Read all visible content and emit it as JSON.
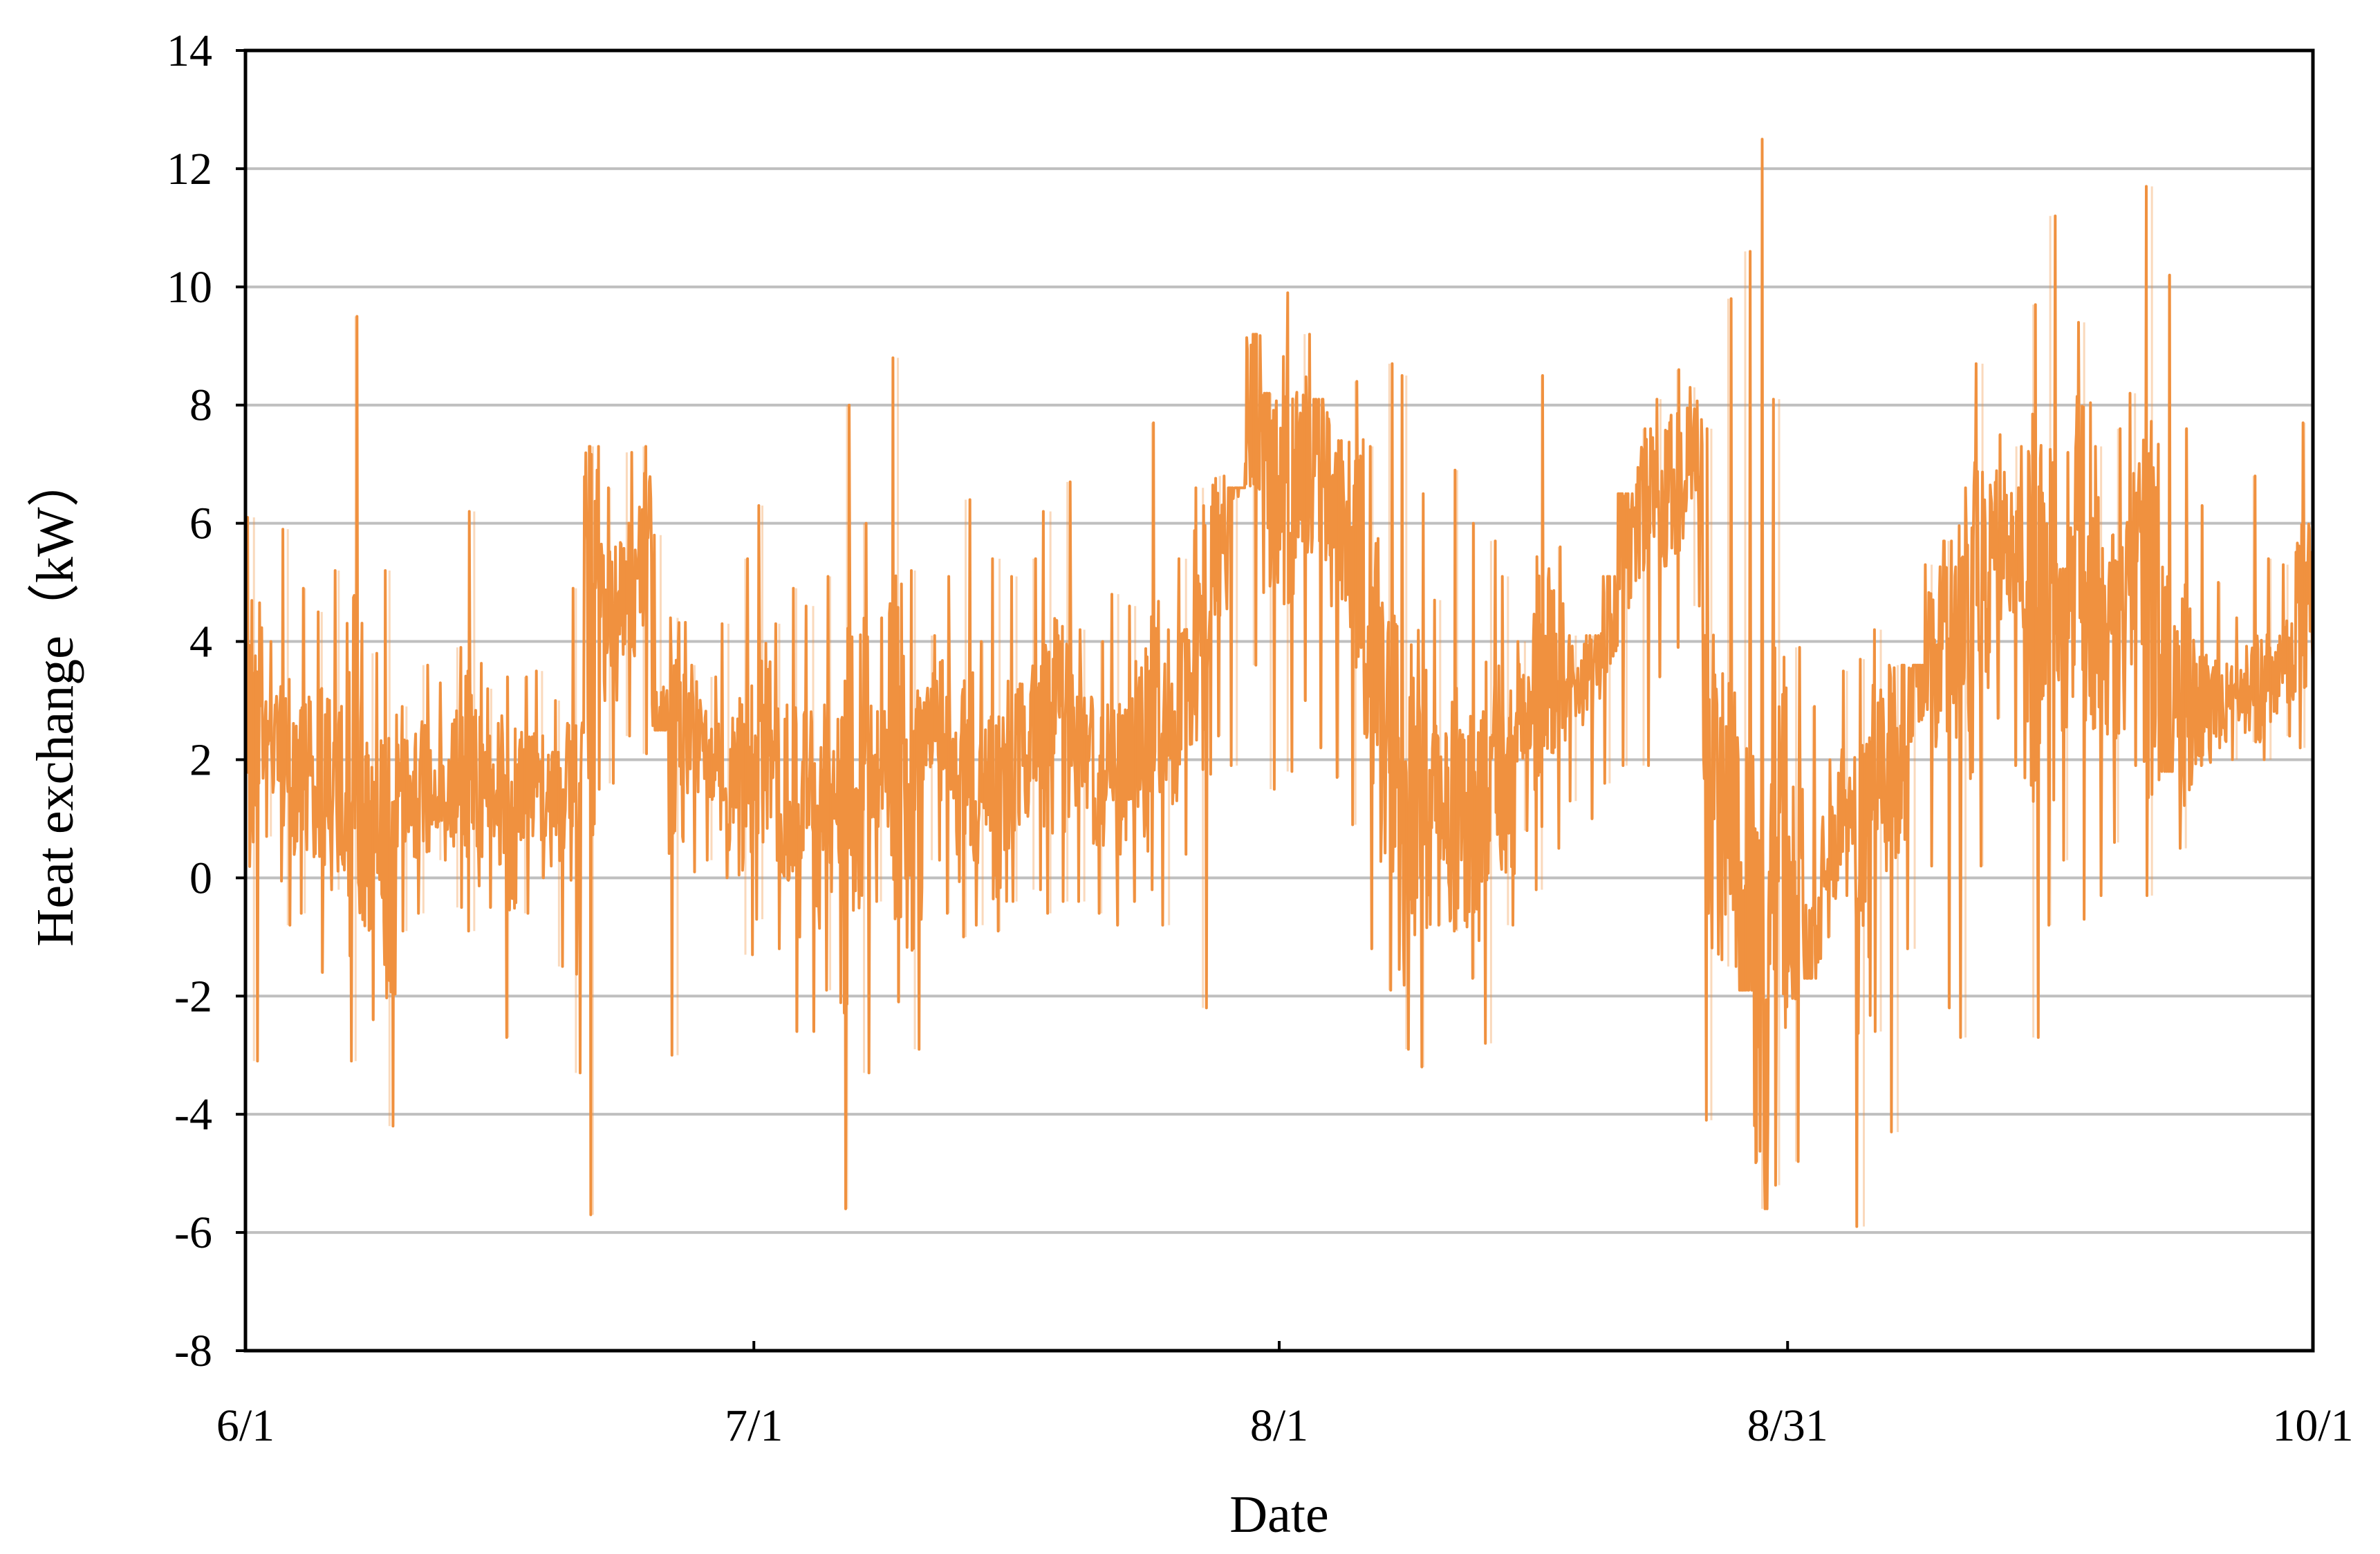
{
  "chart_data": {
    "type": "line",
    "title": "",
    "xlabel": "Date",
    "ylabel": "Heat exchange（kW）",
    "x_tick_labels": [
      "6/1",
      "7/1",
      "8/1",
      "8/31",
      "10/1"
    ],
    "x_tick_dates": [
      "2000-06-01",
      "2000-07-01",
      "2000-08-01",
      "2000-08-31",
      "2000-10-01"
    ],
    "xlim": [
      "2000-06-01",
      "2000-10-01"
    ],
    "ylim": [
      -8,
      14
    ],
    "y_ticks": [
      -8,
      -6,
      -4,
      -2,
      0,
      2,
      4,
      6,
      8,
      10,
      12,
      14
    ],
    "y_tick_labels": [
      "-8",
      "-6",
      "-4",
      "-2",
      "0",
      "2",
      "4",
      "6",
      "8",
      "10",
      "12",
      "14"
    ],
    "grid": "horizontal",
    "legend": "none",
    "line_color": "#F0913F",
    "series": [
      {
        "x": [
          "2000-06-01",
          "2000-06-02",
          "2000-06-03",
          "2000-06-04",
          "2000-06-05",
          "2000-06-06",
          "2000-06-07",
          "2000-06-08",
          "2000-06-09",
          "2000-06-10",
          "2000-06-11",
          "2000-06-12",
          "2000-06-13",
          "2000-06-14",
          "2000-06-15",
          "2000-06-16",
          "2000-06-17",
          "2000-06-18",
          "2000-06-19",
          "2000-06-20",
          "2000-06-21",
          "2000-06-22",
          "2000-06-23",
          "2000-06-24",
          "2000-06-25",
          "2000-06-26",
          "2000-06-27",
          "2000-06-28",
          "2000-06-29",
          "2000-06-30",
          "2000-07-01",
          "2000-07-02",
          "2000-07-03",
          "2000-07-04",
          "2000-07-05",
          "2000-07-06",
          "2000-07-07",
          "2000-07-08",
          "2000-07-09",
          "2000-07-10",
          "2000-07-11",
          "2000-07-12",
          "2000-07-13",
          "2000-07-14",
          "2000-07-15",
          "2000-07-16",
          "2000-07-17",
          "2000-07-18",
          "2000-07-19",
          "2000-07-20",
          "2000-07-21",
          "2000-07-22",
          "2000-07-23",
          "2000-07-24",
          "2000-07-25",
          "2000-07-26",
          "2000-07-27",
          "2000-07-28",
          "2000-07-29",
          "2000-07-30",
          "2000-07-31",
          "2000-08-01",
          "2000-08-02",
          "2000-08-03",
          "2000-08-04",
          "2000-08-05",
          "2000-08-06",
          "2000-08-07",
          "2000-08-08",
          "2000-08-09",
          "2000-08-10",
          "2000-08-11",
          "2000-08-12",
          "2000-08-13",
          "2000-08-14",
          "2000-08-15",
          "2000-08-16",
          "2000-08-17",
          "2000-08-18",
          "2000-08-19",
          "2000-08-20",
          "2000-08-21",
          "2000-08-22",
          "2000-08-23",
          "2000-08-24",
          "2000-08-25",
          "2000-08-26",
          "2000-08-27",
          "2000-08-28",
          "2000-08-29",
          "2000-08-30",
          "2000-08-31",
          "2000-09-01",
          "2000-09-02",
          "2000-09-03",
          "2000-09-04",
          "2000-09-05",
          "2000-09-06",
          "2000-09-07",
          "2000-09-08",
          "2000-09-09",
          "2000-09-10",
          "2000-09-11",
          "2000-09-12",
          "2000-09-13",
          "2000-09-14",
          "2000-09-15",
          "2000-09-16",
          "2000-09-17",
          "2000-09-18",
          "2000-09-19",
          "2000-09-20",
          "2000-09-21",
          "2000-09-22",
          "2000-09-23",
          "2000-09-24",
          "2000-09-25",
          "2000-09-26",
          "2000-09-27",
          "2000-09-28",
          "2000-09-29",
          "2000-09-30",
          "2000-10-01"
        ],
        "max": [
          6.1,
          4.0,
          5.9,
          4.9,
          4.5,
          5.2,
          9.5,
          3.8,
          5.2,
          2.9,
          3.6,
          3.3,
          3.9,
          6.2,
          3.2,
          3.4,
          3.4,
          3.5,
          3.0,
          4.9,
          7.3,
          6.6,
          7.2,
          7.3,
          5.8,
          4.4,
          3.6,
          3.4,
          4.3,
          5.4,
          6.3,
          4.3,
          4.9,
          4.6,
          5.1,
          8.0,
          6.0,
          4.4,
          8.8,
          5.2,
          4.1,
          5.1,
          6.4,
          4.0,
          5.4,
          5.1,
          5.4,
          6.2,
          6.7,
          4.2,
          4.0,
          4.8,
          4.6,
          7.7,
          4.2,
          5.4,
          6.6,
          6.8,
          6.6,
          9.2,
          8.2,
          9.9,
          9.2,
          8.1,
          7.4,
          8.4,
          7.3,
          8.7,
          8.5,
          6.5,
          4.7,
          6.9,
          6.0,
          5.7,
          5.1,
          4.0,
          8.5,
          5.6,
          4.1,
          4.1,
          5.1,
          6.5,
          7.6,
          8.1,
          8.6,
          8.3,
          7.6,
          9.8,
          10.6,
          12.5,
          8.1,
          3.9,
          2.9,
          2.0,
          3.5,
          3.7,
          4.2,
          3.6,
          3.6,
          5.3,
          5.7,
          6.6,
          8.7,
          7.5,
          7.3,
          9.7,
          11.2,
          7.2,
          9.4,
          7.3,
          7.6,
          8.2,
          11.7,
          10.2,
          7.6,
          6.3,
          5.0,
          4.4,
          6.8,
          5.4,
          5.3,
          7.7,
          7.0
        ],
        "min": [
          -3.1,
          0.7,
          -0.8,
          -0.6,
          -1.6,
          -0.2,
          -3.1,
          -2.4,
          -4.2,
          -0.9,
          -0.6,
          0.3,
          -0.5,
          -0.9,
          -0.5,
          -2.7,
          -0.6,
          0.0,
          -1.5,
          -3.3,
          -5.7,
          1.6,
          2.4,
          2.1,
          2.5,
          -3.0,
          0.1,
          0.3,
          0.0,
          -1.3,
          -0.7,
          -1.2,
          -2.6,
          -2.6,
          -1.9,
          -5.6,
          -3.3,
          -0.4,
          -2.1,
          -2.9,
          0.3,
          -0.6,
          -1.0,
          -0.8,
          -0.9,
          -0.4,
          -0.2,
          -0.6,
          -0.4,
          -0.4,
          -0.6,
          -0.8,
          -0.4,
          -0.2,
          -0.8,
          0.4,
          -2.2,
          2.4,
          1.9,
          3.6,
          1.5,
          1.8,
          3.0,
          2.2,
          1.7,
          0.9,
          -1.2,
          -1.9,
          -2.9,
          -3.2,
          -0.8,
          -0.9,
          -1.7,
          -2.8,
          -0.8,
          0.8,
          -0.2,
          0.5,
          1.3,
          1.0,
          1.6,
          1.9,
          1.9,
          3.4,
          3.9,
          4.6,
          -4.1,
          -1.5,
          -1.9,
          -5.6,
          -5.2,
          -4.8,
          -1.7,
          -1.0,
          -0.3,
          -5.9,
          -2.6,
          -4.3,
          -1.2,
          0.2,
          -2.2,
          -2.7,
          0.2,
          2.7,
          1.9,
          -2.7,
          -0.8,
          0.3,
          -0.7,
          -0.3,
          0.6,
          1.9,
          -0.3,
          1.8,
          0.5,
          1.9,
          2.2,
          2.0,
          2.3,
          2.0,
          2.4,
          2.2,
          0.8
        ],
        "mean": [
          2.5,
          2.2,
          1.6,
          1.9,
          1.6,
          1.5,
          2.0,
          0.6,
          0.2,
          1.4,
          1.5,
          1.6,
          1.7,
          1.7,
          1.6,
          1.1,
          1.4,
          1.6,
          1.2,
          0.5,
          3.9,
          4.3,
          4.8,
          5.5,
          2.7,
          2.4,
          2.4,
          2.0,
          1.6,
          1.8,
          2.4,
          1.5,
          0.9,
          1.0,
          1.6,
          1.3,
          2.0,
          1.8,
          2.2,
          1.0,
          2.7,
          2.3,
          1.8,
          1.4,
          1.3,
          2.0,
          2.5,
          2.6,
          2.6,
          2.3,
          1.8,
          1.5,
          2.3,
          2.6,
          2.5,
          2.9,
          3.9,
          5.6,
          7.7,
          8.0,
          6.6,
          6.7,
          7.1,
          6.9,
          6.1,
          5.6,
          3.6,
          1.8,
          1.2,
          1.6,
          1.7,
          1.2,
          0.9,
          1.6,
          1.6,
          2.8,
          3.2,
          3.5,
          3.3,
          3.6,
          4.4,
          5.8,
          6.5,
          6.3,
          6.7,
          7.1,
          1.6,
          0.9,
          -0.9,
          -2.3,
          0.5,
          -0.3,
          -1.6,
          0.4,
          1.2,
          -0.1,
          1.8,
          2.3,
          3.2,
          3.6,
          4.3,
          3.7,
          5.3,
          5.6,
          5.5,
          4.5,
          4.4,
          4.3,
          5.4,
          4.4,
          3.9,
          5.3,
          4.5,
          3.2,
          3.1,
          3.1,
          3.0,
          3.1,
          3.2,
          3.2,
          3.7,
          4.5,
          3.4
        ]
      }
    ]
  }
}
